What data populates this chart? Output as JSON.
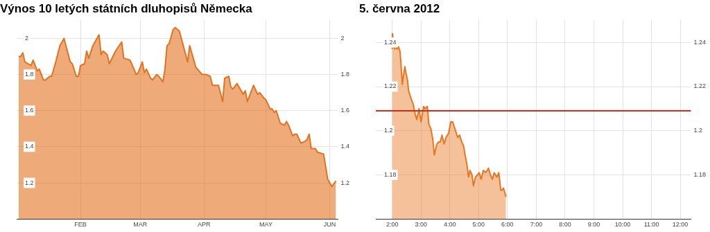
{
  "chart_data": [
    {
      "type": "area",
      "title": "Výnos 10 letých státních dluhopisů Německa",
      "color": "#e2721e",
      "x": [
        "2012-01-02",
        "2012-01-03",
        "2012-01-04",
        "2012-01-05",
        "2012-01-08",
        "2012-01-09",
        "2012-01-11",
        "2012-01-12",
        "2012-01-14",
        "2012-01-15",
        "2012-01-17",
        "2012-01-18",
        "2012-01-20",
        "2012-01-22",
        "2012-01-24",
        "2012-01-27",
        "2012-01-28",
        "2012-01-30",
        "2012-01-31",
        "2012-02-01",
        "2012-02-03",
        "2012-02-04",
        "2012-02-05",
        "2012-02-07",
        "2012-02-08",
        "2012-02-10",
        "2012-02-11",
        "2012-02-12",
        "2012-02-14",
        "2012-02-15",
        "2012-02-18",
        "2012-02-21",
        "2012-02-22",
        "2012-02-25",
        "2012-02-27",
        "2012-02-28",
        "2012-02-29",
        "2012-03-02",
        "2012-03-03",
        "2012-03-04",
        "2012-03-06",
        "2012-03-07",
        "2012-03-09",
        "2012-03-10",
        "2012-03-12",
        "2012-03-13",
        "2012-03-14",
        "2012-03-15",
        "2012-03-17",
        "2012-03-18",
        "2012-03-20",
        "2012-03-24",
        "2012-03-25",
        "2012-03-28",
        "2012-03-31",
        "2012-04-02",
        "2012-04-04",
        "2012-04-05",
        "2012-04-08",
        "2012-04-10",
        "2012-04-11",
        "2012-04-13",
        "2012-04-14",
        "2012-04-15",
        "2012-04-17",
        "2012-04-20",
        "2012-04-21",
        "2012-04-22",
        "2012-04-25",
        "2012-04-27",
        "2012-04-28",
        "2012-04-30",
        "2012-05-01",
        "2012-05-03",
        "2012-05-04",
        "2012-05-05",
        "2012-05-06",
        "2012-05-08",
        "2012-05-10",
        "2012-05-11",
        "2012-05-12",
        "2012-05-14",
        "2012-05-15",
        "2012-05-16",
        "2012-05-18",
        "2012-05-20",
        "2012-05-21",
        "2012-05-22",
        "2012-05-23",
        "2012-05-25",
        "2012-05-26",
        "2012-05-29",
        "2012-05-31",
        "2012-06-02",
        "2012-06-04"
      ],
      "values": [
        1.9,
        1.9,
        1.92,
        1.87,
        1.85,
        1.88,
        1.82,
        1.83,
        1.77,
        1.77,
        1.79,
        1.79,
        1.87,
        1.96,
        2.0,
        1.87,
        1.86,
        1.79,
        1.79,
        1.85,
        1.86,
        1.93,
        1.89,
        1.96,
        1.98,
        2.02,
        1.91,
        1.93,
        1.91,
        1.86,
        1.93,
        1.98,
        1.89,
        1.88,
        1.83,
        1.8,
        1.81,
        1.87,
        1.81,
        1.83,
        1.78,
        1.77,
        1.8,
        1.79,
        1.76,
        1.83,
        1.96,
        1.97,
        2.05,
        2.06,
        2.04,
        1.87,
        1.96,
        1.84,
        1.8,
        1.8,
        1.79,
        1.74,
        1.74,
        1.65,
        1.78,
        1.79,
        1.73,
        1.72,
        1.75,
        1.69,
        1.71,
        1.65,
        1.74,
        1.69,
        1.7,
        1.67,
        1.66,
        1.61,
        1.61,
        1.59,
        1.6,
        1.53,
        1.52,
        1.54,
        1.52,
        1.46,
        1.47,
        1.47,
        1.42,
        1.43,
        1.44,
        1.47,
        1.39,
        1.39,
        1.37,
        1.36,
        1.22,
        1.18,
        1.21
      ],
      "xlim": [
        "2012-01-01",
        "2012-06-05"
      ],
      "xticks": [
        {
          "value": "2012-02-01",
          "label": "FEB"
        },
        {
          "value": "2012-03-01",
          "label": "MAR"
        },
        {
          "value": "2012-04-01",
          "label": "APR"
        },
        {
          "value": "2012-05-01",
          "label": "MAY"
        },
        {
          "value": "2012-06-01",
          "label": "JUN"
        }
      ],
      "ylim": [
        1.0,
        2.1
      ],
      "yticks": [
        1.2,
        1.4,
        1.6,
        1.8,
        2
      ],
      "y2lim": [
        1.0,
        2.1
      ],
      "y2ticks": [
        1.2,
        1.4,
        1.6,
        1.8,
        2
      ],
      "grid": true
    },
    {
      "type": "area",
      "title": "5. června 2012",
      "color": "#e8761e",
      "x": [
        2.0,
        2.01,
        2.05,
        2.09,
        2.12,
        2.16,
        2.22,
        2.27,
        2.3,
        2.35,
        2.39,
        2.44,
        2.48,
        2.53,
        2.57,
        2.62,
        2.67,
        2.73,
        2.79,
        2.85,
        2.93,
        3.0,
        3.09,
        3.14,
        3.22,
        3.27,
        3.34,
        3.41,
        3.46,
        3.55,
        3.62,
        3.67,
        3.73,
        3.8,
        3.87,
        3.96,
        4.03,
        4.1,
        4.2,
        4.27,
        4.34,
        4.41,
        4.48,
        4.53,
        4.59,
        4.65,
        4.7,
        4.77,
        4.82,
        4.89,
        4.96,
        5.02,
        5.09,
        5.16,
        5.25,
        5.34,
        5.41,
        5.48,
        5.54,
        5.63,
        5.7,
        5.77,
        5.81,
        5.86,
        5.91,
        5.95
      ],
      "values": [
        1.237,
        1.244,
        1.24,
        1.237,
        1.24,
        1.237,
        1.238,
        1.236,
        1.231,
        1.221,
        1.225,
        1.229,
        1.226,
        1.223,
        1.218,
        1.216,
        1.214,
        1.212,
        1.208,
        1.205,
        1.21,
        1.204,
        1.211,
        1.21,
        1.211,
        1.203,
        1.201,
        1.196,
        1.189,
        1.194,
        1.195,
        1.195,
        1.198,
        1.194,
        1.197,
        1.199,
        1.204,
        1.204,
        1.2,
        1.197,
        1.198,
        1.195,
        1.193,
        1.189,
        1.185,
        1.179,
        1.182,
        1.18,
        1.175,
        1.179,
        1.18,
        1.181,
        1.178,
        1.182,
        1.181,
        1.183,
        1.18,
        1.178,
        1.181,
        1.179,
        1.181,
        1.173,
        1.173,
        1.174,
        1.172,
        1.17
      ],
      "xlim": [
        1.43,
        12.37
      ],
      "xticks": [
        {
          "value": 2,
          "label": "2:00"
        },
        {
          "value": 3,
          "label": "3:00"
        },
        {
          "value": 4,
          "label": "4:00"
        },
        {
          "value": 5,
          "label": "5:00"
        },
        {
          "value": 6,
          "label": "6:00"
        },
        {
          "value": 7,
          "label": "7:00"
        },
        {
          "value": 8,
          "label": "8:00"
        },
        {
          "value": 9,
          "label": "9:00"
        },
        {
          "value": 10,
          "label": "10:00"
        },
        {
          "value": 11,
          "label": "11:00"
        },
        {
          "value": 12,
          "label": "12:00"
        }
      ],
      "ylim": [
        1.16,
        1.25
      ],
      "yticks": [
        1.18,
        1.2,
        1.22,
        1.24
      ],
      "y2lim": [
        1.16,
        1.25
      ],
      "y2ticks": [
        1.18,
        1.2,
        1.22,
        1.24
      ],
      "ref_lines": [
        {
          "axis": "y",
          "value": 1.209,
          "color": "#d42a1e"
        }
      ],
      "grid": true
    }
  ]
}
